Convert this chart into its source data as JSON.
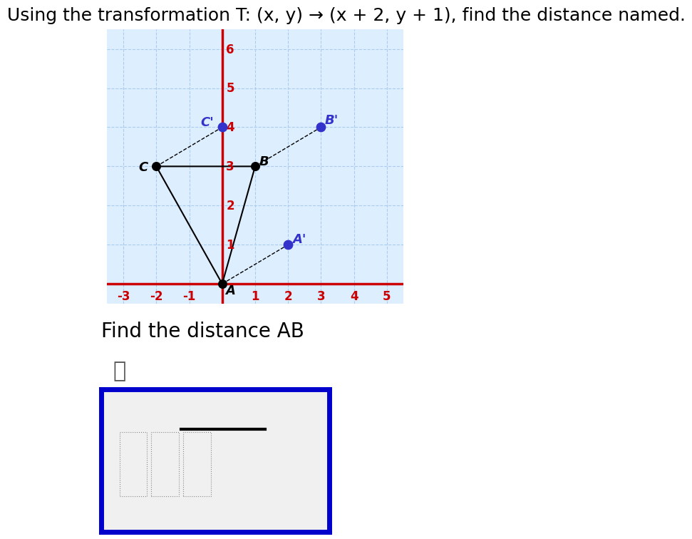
{
  "title": "Using the transformation T: (x, y) → (x + 2, y + 1), find the distance named.",
  "subtitle": "Find the distance AB",
  "background_color": "#ffffff",
  "grid_bg_color": "#ddeeff",
  "grid_line_color": "#aaccee",
  "grid_major_color": "#cc0000",
  "xlim": [
    -3.5,
    5.5
  ],
  "ylim": [
    -0.5,
    6.5
  ],
  "xticks": [
    -3,
    -2,
    -1,
    1,
    2,
    3,
    4,
    5
  ],
  "yticks": [
    1,
    2,
    3,
    4,
    5,
    6
  ],
  "points_original": {
    "A": [
      0,
      0
    ],
    "B": [
      1,
      3
    ],
    "C": [
      -2,
      3
    ]
  },
  "points_transformed": {
    "A_prime": [
      2,
      1
    ],
    "B_prime": [
      3,
      4
    ],
    "C_prime": [
      0,
      4
    ]
  },
  "original_color": "#000000",
  "transformed_color": "#3333cc",
  "dot_size": 80,
  "original_dot_size": 70,
  "font_size_title": 18,
  "font_size_label": 13,
  "font_size_tick": 12,
  "axis_color": "#cc0000"
}
